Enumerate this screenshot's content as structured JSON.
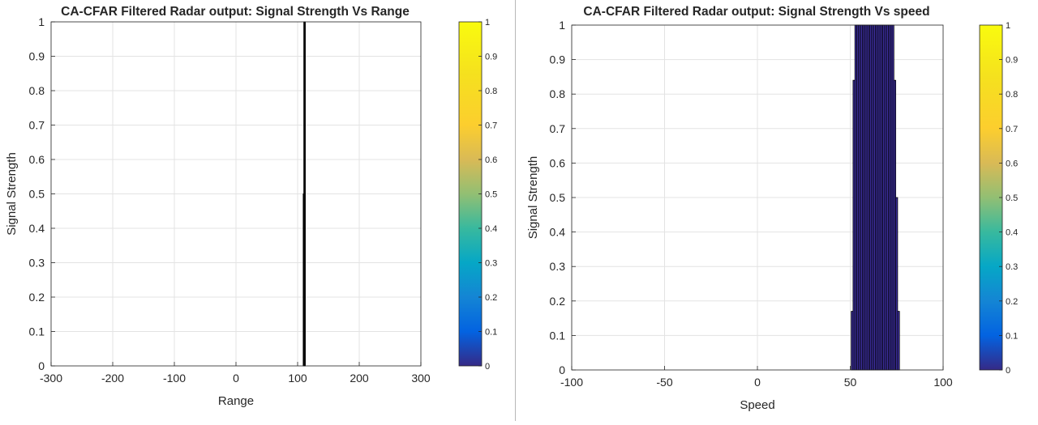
{
  "chart_data": [
    {
      "type": "bar",
      "title": "CA-CFAR Filtered Radar output: Signal Strength Vs Range",
      "xlabel": "Range",
      "ylabel": "Signal Strength",
      "xlim": [
        -300,
        300
      ],
      "ylim": [
        0,
        1
      ],
      "xticks": [
        -300,
        -200,
        -100,
        0,
        100,
        200,
        300
      ],
      "xtick_labels": [
        "-300",
        "-200",
        "-100",
        "0",
        "100",
        "200",
        "300"
      ],
      "yticks": [
        0,
        0.1,
        0.2,
        0.3,
        0.4,
        0.5,
        0.6,
        0.7,
        0.8,
        0.9,
        1
      ],
      "ytick_labels": [
        "0",
        "0.1",
        "0.2",
        "0.3",
        "0.4",
        "0.5",
        "0.6",
        "0.7",
        "0.8",
        "0.9",
        "1"
      ],
      "grid": true,
      "bar_color": "#000000",
      "x": [
        109.5,
        110.5,
        111.5
      ],
      "values": [
        0.5,
        1,
        1
      ],
      "bar_width": 1,
      "colorbar": {
        "ticks": [
          0,
          0.1,
          0.2,
          0.3,
          0.4,
          0.5,
          0.6,
          0.7,
          0.8,
          0.9,
          1
        ],
        "tick_labels": [
          "0",
          "0.1",
          "0.2",
          "0.3",
          "0.4",
          "0.5",
          "0.6",
          "0.7",
          "0.8",
          "0.9",
          "1"
        ],
        "colormap": "parula"
      }
    },
    {
      "type": "bar",
      "title": "CA-CFAR Filtered Radar output: Signal Strength Vs speed",
      "xlabel": "Speed",
      "ylabel": "Signal Strength",
      "xlim": [
        -100,
        100
      ],
      "ylim": [
        0,
        1
      ],
      "xticks": [
        -100,
        -50,
        0,
        50,
        100
      ],
      "xtick_labels": [
        "-100",
        "-50",
        "0",
        "50",
        "100"
      ],
      "yticks": [
        0,
        0.1,
        0.2,
        0.3,
        0.4,
        0.5,
        0.6,
        0.7,
        0.8,
        0.9,
        1
      ],
      "ytick_labels": [
        "0",
        "0.1",
        "0.2",
        "0.3",
        "0.4",
        "0.5",
        "0.6",
        "0.7",
        "0.8",
        "0.9",
        "1"
      ],
      "grid": true,
      "bar_color": "#3d2fa0",
      "bar_edge_color": "#000000",
      "x": [
        51,
        52,
        53,
        54,
        55,
        56,
        57,
        58,
        59,
        60,
        61,
        62,
        63,
        64,
        65,
        66,
        67,
        68,
        69,
        70,
        71,
        72,
        73,
        74,
        75,
        76
      ],
      "values": [
        0.17,
        0.84,
        1,
        1,
        1,
        1,
        1,
        1,
        1,
        1,
        1,
        1,
        1,
        1,
        1,
        1,
        1,
        1,
        1,
        1,
        1,
        1,
        1,
        0.84,
        0.5,
        0.17
      ],
      "bar_width": 1,
      "colorbar": {
        "ticks": [
          0,
          0.1,
          0.2,
          0.3,
          0.4,
          0.5,
          0.6,
          0.7,
          0.8,
          0.9,
          1
        ],
        "tick_labels": [
          "0",
          "0.1",
          "0.2",
          "0.3",
          "0.4",
          "0.5",
          "0.6",
          "0.7",
          "0.8",
          "0.9",
          "1"
        ],
        "colormap": "parula"
      }
    }
  ]
}
